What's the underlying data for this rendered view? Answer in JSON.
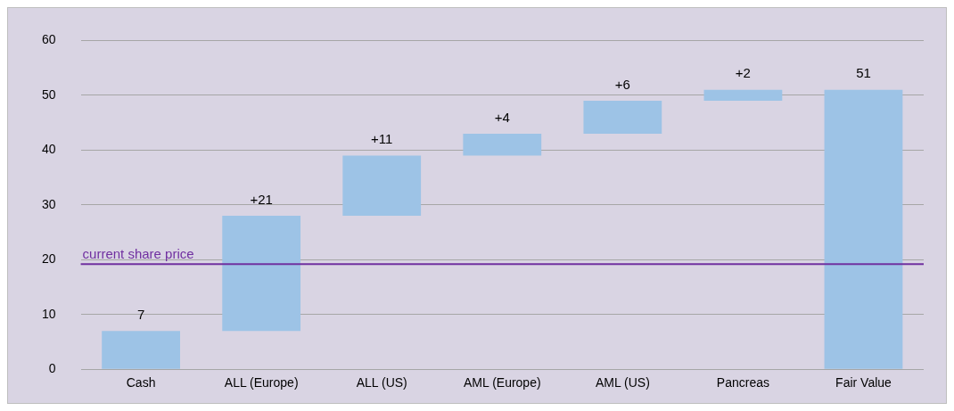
{
  "chart_data": {
    "type": "bar",
    "categories": [
      "Cash",
      "ALL (Europe)",
      "ALL (US)",
      "AML (Europe)",
      "AML (US)",
      "Pancreas",
      "Fair Value"
    ],
    "values": [
      7,
      21,
      11,
      4,
      6,
      2,
      51
    ],
    "base": [
      0,
      7,
      28,
      39,
      43,
      49,
      0
    ],
    "color": "#9dc3e6",
    "value_labels": [
      "7",
      "+21",
      "+11",
      "+4",
      "+6",
      "+2",
      "51"
    ],
    "ylim": [
      0,
      60
    ],
    "yticks": [
      0,
      10,
      20,
      30,
      40,
      50,
      60
    ],
    "grid": "y",
    "legend": false,
    "ref_lines": [
      {
        "axis": "y",
        "value": 19.2,
        "label": "current share price",
        "color": "#7030a0",
        "line_style": "solid"
      }
    ]
  }
}
